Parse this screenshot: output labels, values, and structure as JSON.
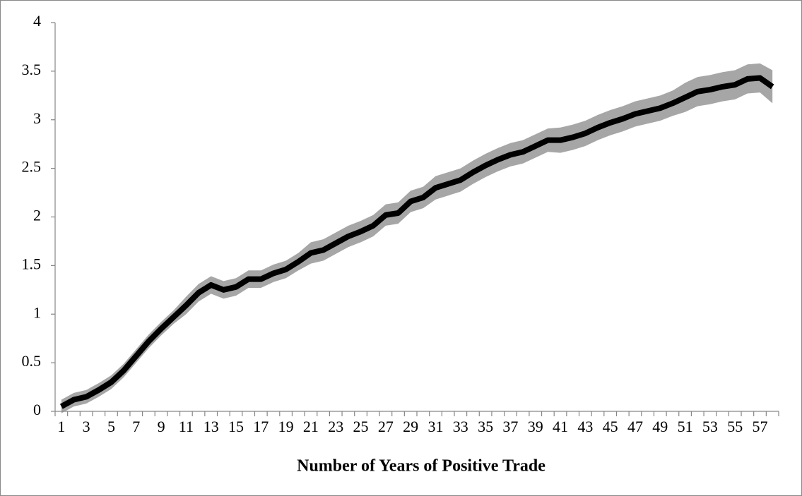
{
  "chart_data": {
    "type": "line",
    "xlabel": "Number of Years of Positive Trade",
    "categories": [
      "1",
      null,
      "3",
      null,
      "5",
      null,
      "7",
      null,
      "9",
      null,
      "11",
      null,
      "13",
      null,
      "15",
      null,
      "17",
      null,
      "19",
      null,
      "21",
      null,
      "23",
      null,
      "25",
      null,
      "27",
      null,
      "29",
      null,
      "31",
      null,
      "33",
      null,
      "35",
      null,
      "37",
      null,
      "39",
      null,
      "41",
      null,
      "43",
      null,
      "45",
      null,
      "47",
      null,
      "49",
      null,
      "51",
      null,
      "53",
      null,
      "55",
      null,
      "57",
      null
    ],
    "values": [
      0.05,
      0.12,
      0.15,
      0.22,
      0.3,
      0.42,
      0.57,
      0.72,
      0.85,
      0.97,
      1.09,
      1.22,
      1.3,
      1.25,
      1.28,
      1.36,
      1.36,
      1.42,
      1.46,
      1.54,
      1.63,
      1.66,
      1.73,
      1.8,
      1.85,
      1.91,
      2.02,
      2.04,
      2.16,
      2.2,
      2.3,
      2.34,
      2.38,
      2.46,
      2.53,
      2.59,
      2.64,
      2.67,
      2.73,
      2.79,
      2.79,
      2.82,
      2.86,
      2.92,
      2.97,
      3.01,
      3.06,
      3.09,
      3.12,
      3.17,
      3.23,
      3.29,
      3.31,
      3.34,
      3.36,
      3.42,
      3.43,
      3.34
    ],
    "errors": [
      0.07,
      0.07,
      0.07,
      0.07,
      0.07,
      0.07,
      0.07,
      0.07,
      0.07,
      0.07,
      0.09,
      0.09,
      0.09,
      0.09,
      0.09,
      0.09,
      0.09,
      0.09,
      0.09,
      0.09,
      0.11,
      0.11,
      0.11,
      0.11,
      0.11,
      0.11,
      0.11,
      0.11,
      0.11,
      0.11,
      0.12,
      0.12,
      0.12,
      0.12,
      0.12,
      0.12,
      0.12,
      0.12,
      0.12,
      0.12,
      0.13,
      0.13,
      0.13,
      0.13,
      0.13,
      0.13,
      0.13,
      0.13,
      0.13,
      0.13,
      0.15,
      0.15,
      0.15,
      0.15,
      0.15,
      0.15,
      0.15,
      0.17
    ],
    "color": "#000000",
    "band_color": "#a6a6a6",
    "ylim": [
      0,
      4
    ],
    "yticks": [
      0,
      0.5,
      1,
      1.5,
      2,
      2.5,
      3,
      3.5,
      4
    ],
    "grid": false
  }
}
